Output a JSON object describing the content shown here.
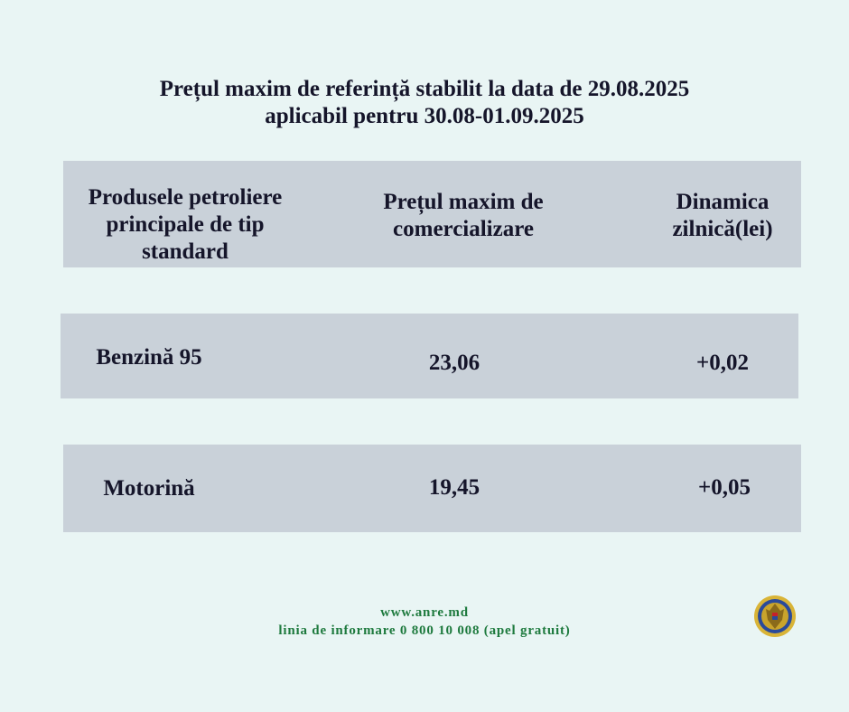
{
  "title": {
    "line1": "Prețul maxim de referință stabilit la data de 29.08.2025",
    "line2": "aplicabil pentru 30.08-01.09.2025"
  },
  "table": {
    "headers": {
      "product": [
        "Produsele petroliere",
        "principale de tip",
        "standard"
      ],
      "price": [
        "Prețul maxim de",
        "comercializare"
      ],
      "change": [
        "Dinamica",
        "zilnică(lei)"
      ]
    },
    "rows": [
      {
        "product": "Benzină 95",
        "price": "23,06",
        "change": "+0,02"
      },
      {
        "product": "Motorină",
        "price": "19,45",
        "change": "+0,05"
      }
    ]
  },
  "footer": {
    "website": "www.anre.md",
    "hotline": "linia de informare 0 800 10 008 (apel gratuit)"
  },
  "logo": {
    "icon": "moldova-coat-of-arms-seal-icon"
  },
  "colors": {
    "background": "#e9f5f4",
    "box": "#c9d1d9",
    "footer_text": "#1e7a3e"
  }
}
